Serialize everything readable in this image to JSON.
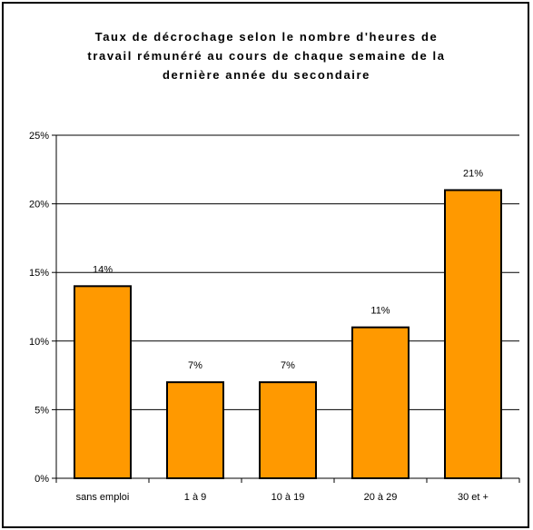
{
  "chart_data": {
    "type": "bar",
    "title_lines": [
      "Taux de décrochage selon le nombre d'heures de",
      "travail rémunéré au cours de chaque semaine de la",
      "dernière année du secondaire"
    ],
    "categories": [
      "sans emploi",
      "1 à 9",
      "10 à 19",
      "20 à 29",
      "30 et +"
    ],
    "values": [
      14,
      7,
      7,
      11,
      21
    ],
    "data_labels": [
      "14%",
      "7%",
      "7%",
      "11%",
      "21%"
    ],
    "y_ticks": [
      0,
      5,
      10,
      15,
      20,
      25
    ],
    "y_tick_labels": [
      "0%",
      "5%",
      "10%",
      "15%",
      "20%",
      "25%"
    ],
    "ylim": [
      0,
      25
    ],
    "grid": true,
    "legend": "none",
    "bar_color": "#FF9900",
    "bar_edge_color": "#000000"
  }
}
